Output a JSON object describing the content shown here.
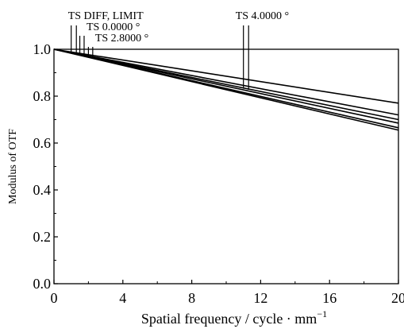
{
  "chart_data": {
    "type": "line",
    "xlabel": "Spatial frequency / cycle · mm",
    "xlabel_sup": "−1",
    "ylabel": "Modulus of OTF",
    "xlim": [
      0,
      20
    ],
    "ylim": [
      0.0,
      1.0
    ],
    "grid": false,
    "x_ticks": [
      0,
      4,
      8,
      12,
      16,
      20
    ],
    "x_tick_labels": [
      "0",
      "4",
      "8",
      "12",
      "16",
      "20"
    ],
    "y_ticks": [
      0.0,
      0.2,
      0.4,
      0.6,
      0.8,
      1.0
    ],
    "y_tick_labels": [
      "0.0",
      "0.2",
      "0.4",
      "0.6",
      "0.8",
      "1.0"
    ],
    "series": [
      {
        "x": [
          0,
          20
        ],
        "y": [
          1.0,
          0.77
        ]
      },
      {
        "x": [
          0,
          20
        ],
        "y": [
          1.0,
          0.72
        ]
      },
      {
        "x": [
          0,
          20
        ],
        "y": [
          1.0,
          0.7
        ]
      },
      {
        "x": [
          0,
          20
        ],
        "y": [
          1.0,
          0.685
        ]
      },
      {
        "x": [
          0,
          20
        ],
        "y": [
          1.0,
          0.665
        ]
      },
      {
        "x": [
          0,
          20
        ],
        "y": [
          1.0,
          0.655
        ]
      }
    ],
    "annotations": [
      {
        "text": "TS DIFF, LIMIT",
        "x": [
          1.0,
          1.3
        ]
      },
      {
        "text": "TS 0.0000 °",
        "x": [
          1.5,
          1.75
        ]
      },
      {
        "text": "TS 2.8000 °",
        "x": [
          2.0,
          2.25
        ]
      },
      {
        "text": "TS 4.0000 °",
        "x": [
          11.0,
          11.3
        ]
      }
    ],
    "colors": {
      "line": "#000000",
      "background": "#ffffff"
    }
  }
}
